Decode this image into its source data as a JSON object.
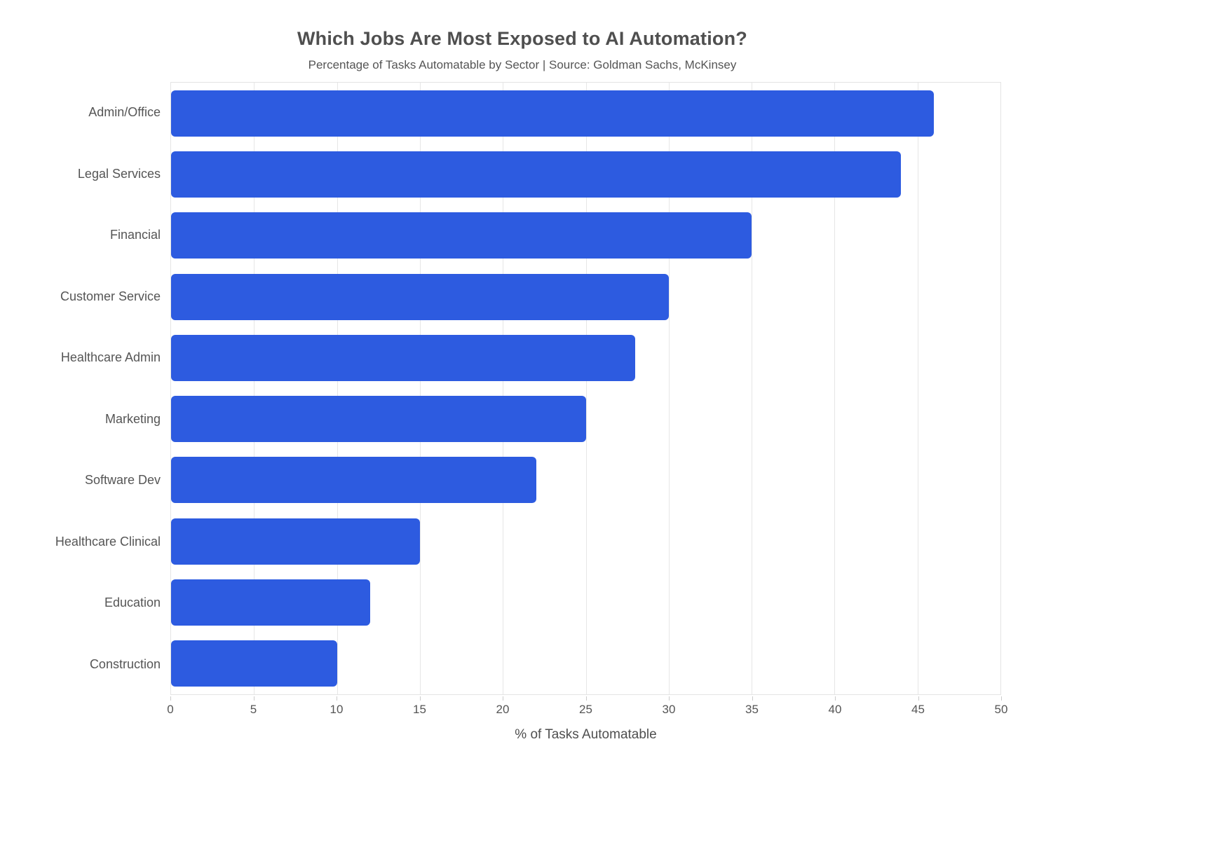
{
  "chart_data": {
    "type": "bar",
    "orientation": "horizontal",
    "title": "Which Jobs Are Most Exposed to AI Automation?",
    "subtitle": "Percentage of Tasks Automatable by Sector | Source: Goldman Sachs, McKinsey",
    "xlabel": "% of Tasks Automatable",
    "ylabel": "",
    "categories": [
      "Admin/Office",
      "Legal Services",
      "Financial",
      "Customer Service",
      "Healthcare Admin",
      "Marketing",
      "Software Dev",
      "Healthcare Clinical",
      "Education",
      "Construction"
    ],
    "values": [
      46,
      44,
      35,
      30,
      28,
      25,
      22,
      15,
      12,
      10
    ],
    "xlim": [
      0,
      50
    ],
    "x_ticks": [
      0,
      5,
      10,
      15,
      20,
      25,
      30,
      35,
      40,
      45,
      50
    ],
    "grid": true,
    "legend": false,
    "bar_color": "#2d5be0",
    "background_color": "#ffffff",
    "text_color": "#555555"
  }
}
